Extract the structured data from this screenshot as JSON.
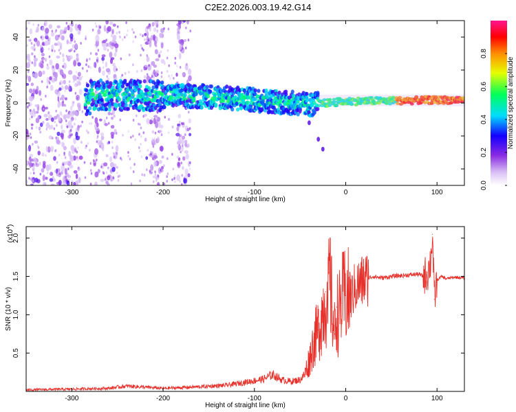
{
  "title": "C2E2.2026.003.19.42.G14",
  "chart_data": [
    {
      "type": "heatmap",
      "xlabel": "Height of straight line (km)",
      "ylabel": "Frequency (Hz)",
      "xlim": [
        -350,
        130
      ],
      "ylim": [
        -50,
        50
      ],
      "xticks": [
        -300,
        -200,
        -100,
        0,
        100
      ],
      "yticks": [
        -40,
        -20,
        0,
        20,
        40
      ],
      "colorbar": {
        "label": "Normalized spectral amplitude",
        "range": [
          0,
          1
        ],
        "ticks": [
          "0.0",
          "0.2",
          "0.4",
          "0.6",
          "0.8"
        ],
        "colors": [
          "#ffffff",
          "#8a2be2",
          "#0000ff",
          "#00ffff",
          "#00ff00",
          "#ffff00",
          "#ff8000",
          "#ff0000",
          "#ff1493"
        ]
      },
      "features": {
        "main_band": {
          "x_range": [
            -280,
            130
          ],
          "freq_center_at": [
            [
              -280,
              5
            ],
            [
              -150,
              4
            ],
            [
              -80,
              1
            ],
            [
              -40,
              -1
            ],
            [
              0,
              1
            ],
            [
              130,
              2
            ]
          ],
          "peak_amplitude_region": [
            60,
            130
          ]
        },
        "diverging_tail": {
          "points": [
            [
              -50,
              -5
            ],
            [
              -40,
              -12
            ],
            [
              -30,
              -22
            ],
            [
              -25,
              -28
            ]
          ]
        },
        "noise_columns": [
          [
            -350,
            -290
          ],
          [
            -275,
            -250
          ],
          [
            -220,
            -200
          ],
          [
            -185,
            -170
          ]
        ]
      }
    },
    {
      "type": "line",
      "xlabel": "Height of straight line (km)",
      "ylabel": "SNR (10 * v/v)",
      "yscale_label": "(x10",
      "yscale_exponent": "4",
      "xlim": [
        -350,
        130
      ],
      "ylim": [
        0,
        2.15
      ],
      "xticks": [
        -300,
        -200,
        -100,
        0,
        100
      ],
      "yticks": [
        "0.5",
        "1.0",
        "1.5",
        "2.0"
      ],
      "color": "#e8302a",
      "series": [
        {
          "x": [
            -350,
            -300,
            -260,
            -240,
            -200,
            -160,
            -130,
            -110,
            -90,
            -80,
            -70,
            -60,
            -50,
            -45,
            -40,
            -35,
            -30,
            -25,
            -22,
            -20,
            -18,
            -15,
            -12,
            -10,
            -8,
            -5,
            0,
            5,
            10,
            15,
            20,
            25,
            30,
            40,
            50,
            60,
            70,
            80,
            85,
            90,
            93,
            95,
            97,
            100,
            105,
            110,
            120,
            130
          ],
          "y": [
            0.02,
            0.03,
            0.04,
            0.07,
            0.04,
            0.06,
            0.08,
            0.12,
            0.16,
            0.22,
            0.15,
            0.13,
            0.15,
            0.22,
            0.4,
            0.65,
            0.8,
            1.05,
            1.3,
            0.9,
            1.55,
            1.1,
            0.75,
            1.1,
            0.95,
            1.15,
            1.25,
            1.2,
            1.35,
            1.4,
            1.45,
            1.48,
            1.5,
            1.48,
            1.5,
            1.51,
            1.52,
            1.53,
            1.5,
            1.55,
            1.7,
            2.05,
            1.2,
            1.45,
            1.5,
            1.47,
            1.49,
            1.48
          ]
        }
      ]
    }
  ]
}
